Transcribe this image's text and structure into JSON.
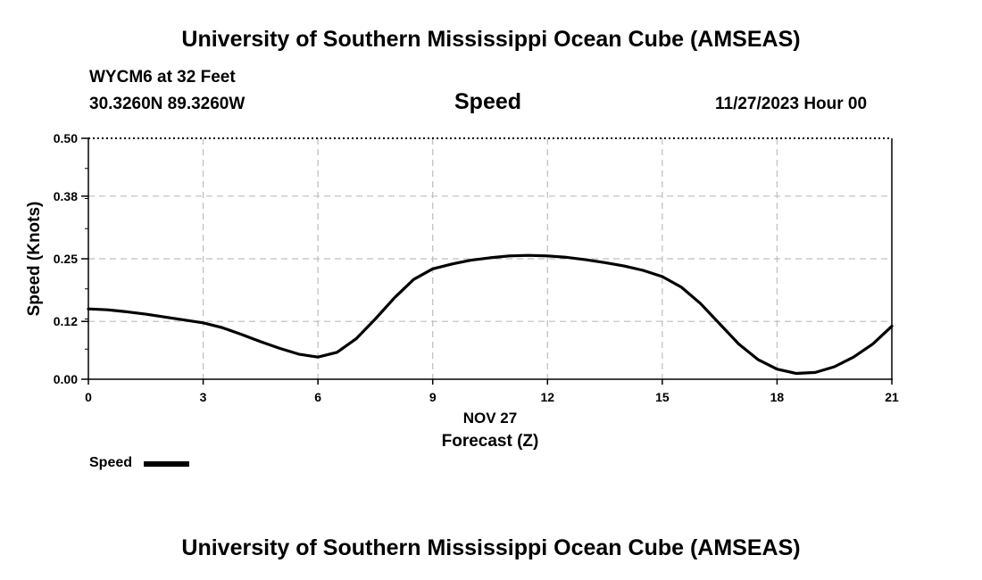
{
  "header": {
    "title": "University of Southern Mississippi Ocean Cube (AMSEAS)",
    "station": "WYCM6 at 32 Feet",
    "location": "30.3260N  89.3260W",
    "subtitle": "Speed",
    "datetime": "11/27/2023 Hour 00"
  },
  "footer": {
    "title": "University of Southern Mississippi Ocean Cube (AMSEAS)"
  },
  "legend": {
    "label": "Speed",
    "color": "#000000"
  },
  "chart_data": {
    "type": "line",
    "title": "Speed",
    "xlabel": "Forecast (Z)",
    "date_label": "NOV 27",
    "ylabel": "Speed (Knots)",
    "xlim": [
      0,
      21
    ],
    "ylim": [
      0,
      0.5
    ],
    "x_ticks": [
      "0",
      "3",
      "6",
      "9",
      "12",
      "15",
      "18",
      "21"
    ],
    "y_ticks": [
      "0.00",
      "0.12",
      "0.25",
      "0.38",
      "0.50"
    ],
    "grid": true,
    "legend_position": "bottom-left",
    "series": [
      {
        "name": "Speed",
        "color": "#000000",
        "x": [
          0,
          0.5,
          1,
          1.5,
          2,
          2.5,
          3,
          3.5,
          4,
          4.5,
          5,
          5.5,
          6,
          6.5,
          7,
          7.5,
          8,
          8.5,
          9,
          9.5,
          10,
          10.5,
          11,
          11.5,
          12,
          12.5,
          13,
          13.5,
          14,
          14.5,
          15,
          15.5,
          16,
          16.5,
          17,
          17.5,
          18,
          18.5,
          19,
          19.5,
          20,
          20.5,
          21
        ],
        "values": [
          0.146,
          0.144,
          0.14,
          0.135,
          0.129,
          0.123,
          0.117,
          0.107,
          0.093,
          0.078,
          0.064,
          0.052,
          0.046,
          0.056,
          0.084,
          0.125,
          0.169,
          0.207,
          0.229,
          0.239,
          0.247,
          0.252,
          0.256,
          0.257,
          0.256,
          0.253,
          0.248,
          0.242,
          0.235,
          0.226,
          0.213,
          0.191,
          0.157,
          0.115,
          0.073,
          0.041,
          0.021,
          0.012,
          0.014,
          0.026,
          0.046,
          0.073,
          0.11
        ]
      }
    ]
  }
}
